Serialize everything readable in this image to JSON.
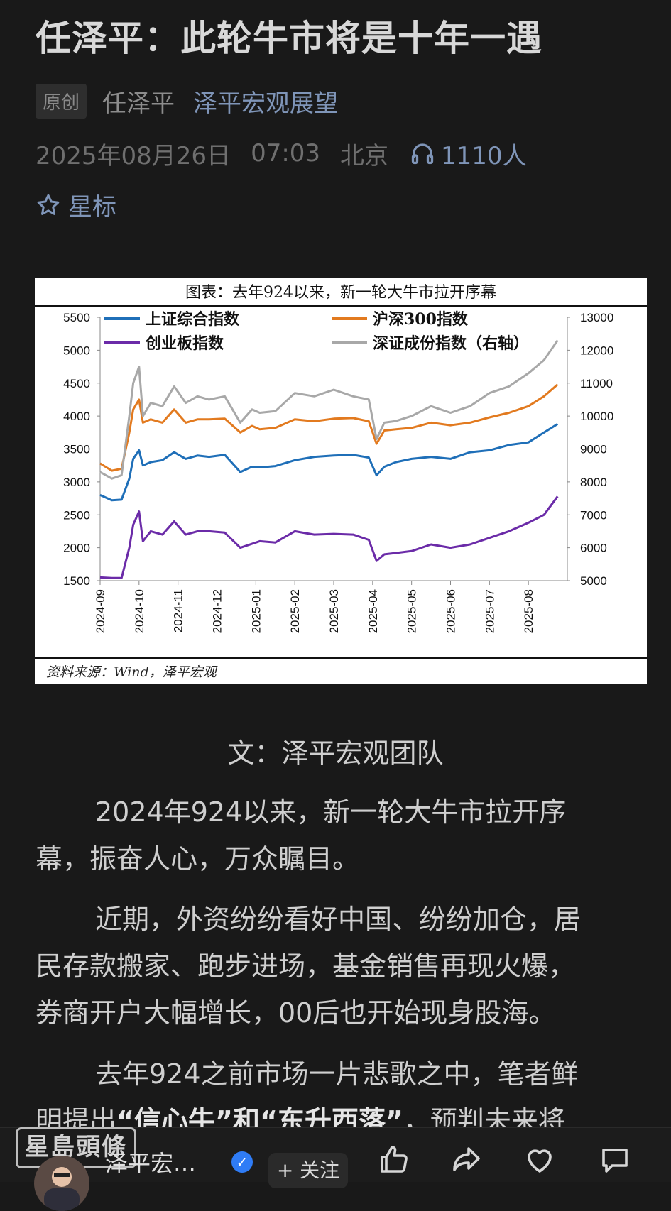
{
  "article": {
    "title": "任泽平：此轮牛市将是十年一遇",
    "tag": "原创",
    "author": "任泽平",
    "account": "泽平宏观展望",
    "date": "2025年08月26日",
    "time": "07:03",
    "location": "北京",
    "listeners": "1110人",
    "star_label": "星标"
  },
  "chart_card": {
    "caption": "图表：去年924以来，新一轮大牛市拉开序幕",
    "source": "资料来源：Wind，泽平宏观"
  },
  "chart_data": {
    "type": "line",
    "title": "图表：去年924以来，新一轮大牛市拉开序幕",
    "x_ticks": [
      "2024-09",
      "2024-10",
      "2024-11",
      "2024-12",
      "2025-01",
      "2025-02",
      "2025-03",
      "2025-04",
      "2025-05",
      "2025-06",
      "2025-07",
      "2025-08"
    ],
    "ylim_left": [
      1500,
      5500
    ],
    "yticks_left": [
      1500,
      2000,
      2500,
      3000,
      3500,
      4000,
      4500,
      5000,
      5500
    ],
    "ylim_right": [
      5000,
      13000
    ],
    "yticks_right": [
      5000,
      6000,
      7000,
      8000,
      9000,
      10000,
      11000,
      12000,
      13000
    ],
    "grid": false,
    "legend_position": "top",
    "series": [
      {
        "name": "上证综合指数",
        "axis": "left",
        "color": "#1f6fb8",
        "x": [
          0,
          0.3,
          0.55,
          0.75,
          0.85,
          1.0,
          1.1,
          1.3,
          1.6,
          1.9,
          2.2,
          2.5,
          2.8,
          3.2,
          3.6,
          3.9,
          4.1,
          4.5,
          5.0,
          5.5,
          6.0,
          6.5,
          6.9,
          7.1,
          7.3,
          7.6,
          8.0,
          8.5,
          9.0,
          9.5,
          10.0,
          10.5,
          11.0,
          11.4,
          11.75
        ],
        "y": [
          2800,
          2720,
          2730,
          3050,
          3350,
          3480,
          3250,
          3300,
          3330,
          3450,
          3350,
          3400,
          3380,
          3410,
          3150,
          3230,
          3220,
          3240,
          3330,
          3380,
          3400,
          3410,
          3370,
          3100,
          3230,
          3300,
          3350,
          3380,
          3350,
          3450,
          3480,
          3560,
          3600,
          3750,
          3880
        ]
      },
      {
        "name": "沪深300指数",
        "axis": "left",
        "color": "#e27a1f",
        "x": [
          0,
          0.3,
          0.55,
          0.75,
          0.85,
          1.0,
          1.1,
          1.3,
          1.6,
          1.9,
          2.2,
          2.5,
          2.8,
          3.2,
          3.6,
          3.9,
          4.1,
          4.5,
          5.0,
          5.5,
          6.0,
          6.5,
          6.9,
          7.1,
          7.3,
          7.6,
          8.0,
          8.5,
          9.0,
          9.5,
          10.0,
          10.5,
          11.0,
          11.4,
          11.75
        ],
        "y": [
          3280,
          3170,
          3200,
          3750,
          4100,
          4250,
          3900,
          3950,
          3900,
          4100,
          3900,
          3950,
          3950,
          3960,
          3750,
          3850,
          3800,
          3820,
          3950,
          3920,
          3960,
          3970,
          3920,
          3580,
          3780,
          3800,
          3820,
          3900,
          3860,
          3900,
          3980,
          4050,
          4150,
          4300,
          4480
        ]
      },
      {
        "name": "创业板指数",
        "axis": "left",
        "color": "#6b2ba8",
        "x": [
          0,
          0.3,
          0.55,
          0.75,
          0.85,
          1.0,
          1.1,
          1.3,
          1.6,
          1.9,
          2.2,
          2.5,
          2.8,
          3.2,
          3.6,
          3.9,
          4.1,
          4.5,
          5.0,
          5.5,
          6.0,
          6.5,
          6.9,
          7.1,
          7.3,
          7.6,
          8.0,
          8.5,
          9.0,
          9.5,
          10.0,
          10.5,
          11.0,
          11.4,
          11.75
        ],
        "y": [
          1550,
          1540,
          1540,
          2000,
          2350,
          2550,
          2100,
          2250,
          2200,
          2400,
          2200,
          2250,
          2250,
          2230,
          2000,
          2060,
          2100,
          2080,
          2250,
          2200,
          2210,
          2200,
          2120,
          1800,
          1900,
          1920,
          1950,
          2050,
          2000,
          2050,
          2150,
          2250,
          2380,
          2500,
          2780
        ]
      },
      {
        "name": "深证成份指数（右轴）",
        "axis": "right",
        "color": "#a8a8a8",
        "x": [
          0,
          0.3,
          0.55,
          0.75,
          0.85,
          1.0,
          1.1,
          1.3,
          1.6,
          1.9,
          2.2,
          2.5,
          2.8,
          3.2,
          3.6,
          3.9,
          4.1,
          4.5,
          5.0,
          5.5,
          6.0,
          6.5,
          6.9,
          7.1,
          7.3,
          7.6,
          8.0,
          8.5,
          9.0,
          9.5,
          10.0,
          10.5,
          11.0,
          11.4,
          11.75
        ],
        "y": [
          8300,
          8100,
          8200,
          10000,
          11000,
          11500,
          10000,
          10400,
          10300,
          10900,
          10400,
          10600,
          10500,
          10600,
          9800,
          10200,
          10100,
          10150,
          10700,
          10600,
          10800,
          10600,
          10500,
          9300,
          9800,
          9850,
          10000,
          10300,
          10100,
          10300,
          10700,
          10900,
          11300,
          11700,
          12300
        ]
      }
    ]
  },
  "body": {
    "byline": "文：泽平宏观团队",
    "p1_l1": "2024年924以来，新一轮大牛市拉开序",
    "p1_l2": "幕，振奋人心，万众瞩目。",
    "p2_l1": "近期，外资纷纷看好中国、纷纷加仓，居",
    "p2_l2": "民存款搬家、跑步进场，基金销售再现火爆，",
    "p2_l3": "券商开户大幅增长，00后也开始现身股海。",
    "p3_l1": "去年924之前市场一片悲歌之中，笔者鲜",
    "p3_l2a": "明提出",
    "p3_l2b": "“信心牛”和“东升西落”",
    "p3_l2c": "，预判未来将"
  },
  "footer": {
    "watermark": "星島頭條",
    "account_name": "泽平宏…",
    "follow_label": "+ 关注"
  }
}
